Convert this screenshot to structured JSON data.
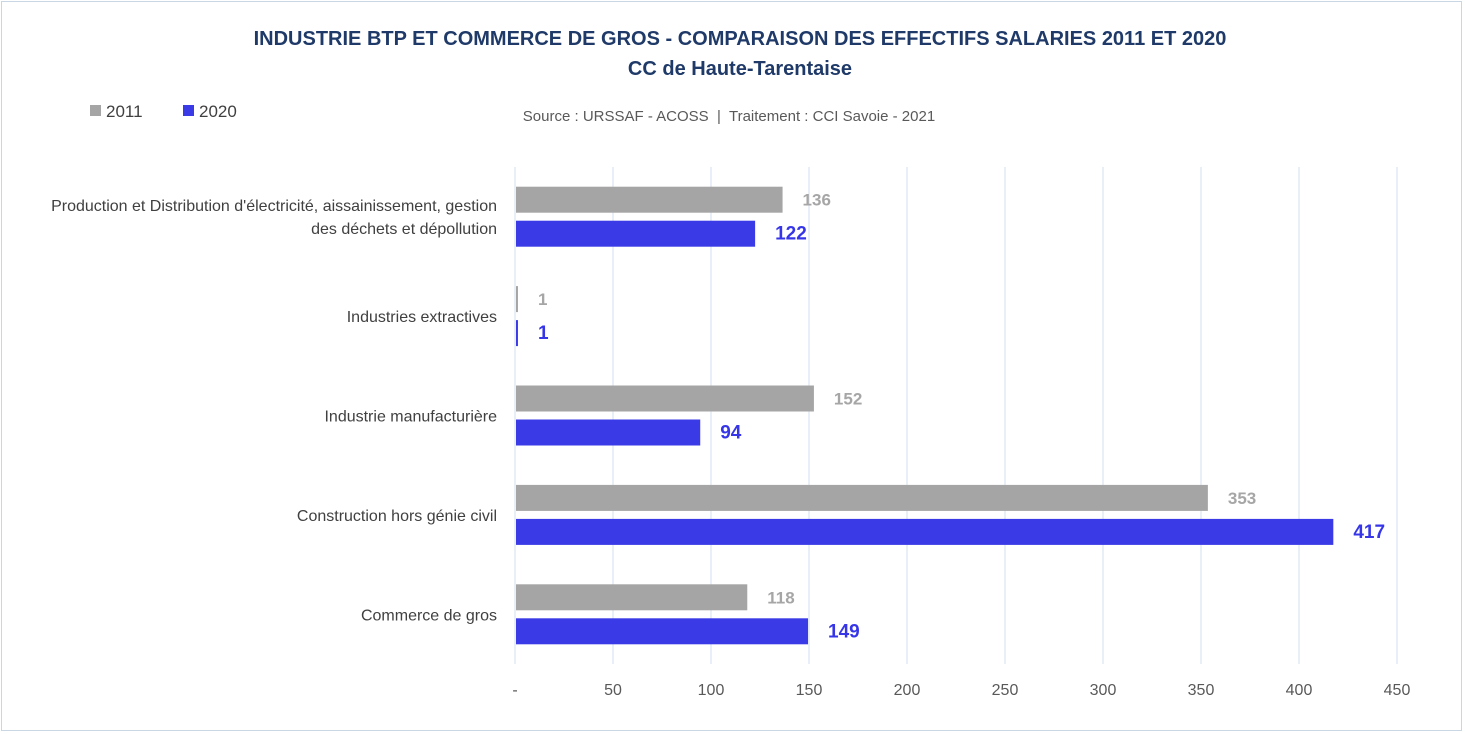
{
  "chart_data": {
    "type": "bar",
    "orientation": "horizontal",
    "title": "INDUSTRIE BTP ET COMMERCE DE GROS - COMPARAISON DES EFFECTIFS SALARIES 2011 ET 2020",
    "subtitle": "CC de Haute-Tarentaise",
    "source": "Source : URSSAF - ACOSS  |  Traitement : CCI Savoie - 2021",
    "categories": [
      [
        "Production et Distribution d'électricité, aissainissement, gestion",
        "des déchets et dépollution"
      ],
      [
        "Industries extractives"
      ],
      [
        "Industrie manufacturière"
      ],
      [
        "Construction hors génie civil"
      ],
      [
        "Commerce de gros"
      ]
    ],
    "series": [
      {
        "name": "2011",
        "color": "#a5a5a5",
        "label_color": "#a6a6a6",
        "values": [
          136,
          1,
          152,
          353,
          118
        ]
      },
      {
        "name": "2020",
        "color": "#3a3ae6",
        "label_color": "#3636e8",
        "values": [
          122,
          1,
          94,
          417,
          149
        ]
      }
    ],
    "xlim": [
      0,
      450
    ],
    "xticks": [
      0,
      50,
      100,
      150,
      200,
      250,
      300,
      350,
      400,
      450
    ],
    "xtick_labels": [
      "-",
      "50",
      "100",
      "150",
      "200",
      "250",
      "300",
      "350",
      "400",
      "450"
    ],
    "grid": true,
    "legend_position": "top-left"
  }
}
